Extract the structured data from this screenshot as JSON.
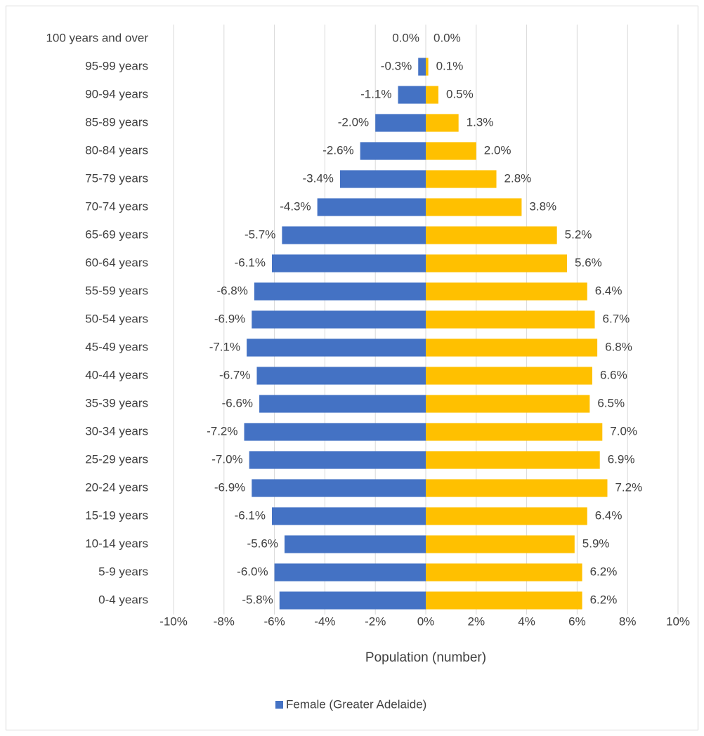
{
  "chart_data": {
    "type": "bar",
    "orientation": "horizontal",
    "x_label": "Population (number)",
    "categories": [
      "0-4 years",
      "5-9 years",
      "10-14 years",
      "15-19 years",
      "20-24 years",
      "25-29 years",
      "30-34 years",
      "35-39 years",
      "40-44 years",
      "45-49 years",
      "50-54 years",
      "55-59 years",
      "60-64 years",
      "65-69 years",
      "70-74 years",
      "75-79 years",
      "80-84 years",
      "85-89 years",
      "90-94 years",
      "95-99 years",
      "100 years and over"
    ],
    "series": [
      {
        "name": "Female (Greater Adelaide)",
        "color": "#4472c4",
        "values": [
          -5.8,
          -6.0,
          -5.6,
          -6.1,
          -6.9,
          -7.0,
          -7.2,
          -6.6,
          -6.7,
          -7.1,
          -6.9,
          -6.8,
          -6.1,
          -5.7,
          -4.3,
          -3.4,
          -2.6,
          -2.0,
          -1.1,
          -0.3,
          0.0
        ],
        "value_labels": [
          "-5.8%",
          "-6.0%",
          "-5.6%",
          "-6.1%",
          "-6.9%",
          "-7.0%",
          "-7.2%",
          "-6.6%",
          "-6.7%",
          "-7.1%",
          "-6.9%",
          "-6.8%",
          "-6.1%",
          "-5.7%",
          "-4.3%",
          "-3.4%",
          "-2.6%",
          "-2.0%",
          "-1.1%",
          "-0.3%",
          "0.0%"
        ]
      },
      {
        "color": "#ffc000",
        "values": [
          6.2,
          6.2,
          5.9,
          6.4,
          7.2,
          6.9,
          7.0,
          6.5,
          6.6,
          6.8,
          6.7,
          6.4,
          5.6,
          5.2,
          3.8,
          2.8,
          2.0,
          1.3,
          0.5,
          0.1,
          0.0
        ],
        "value_labels": [
          "6.2%",
          "6.2%",
          "5.9%",
          "6.4%",
          "7.2%",
          "6.9%",
          "7.0%",
          "6.5%",
          "6.6%",
          "6.8%",
          "6.7%",
          "6.4%",
          "5.6%",
          "5.2%",
          "3.8%",
          "2.8%",
          "2.0%",
          "1.3%",
          "0.5%",
          "0.1%",
          "0.0%"
        ]
      }
    ],
    "xlim": [
      -10,
      10
    ],
    "xticks": [
      {
        "value": -10,
        "label": "-10%"
      },
      {
        "value": -8,
        "label": "-8%"
      },
      {
        "value": -6,
        "label": "-6%"
      },
      {
        "value": -4,
        "label": "-4%"
      },
      {
        "value": -2,
        "label": "-2%"
      },
      {
        "value": 0,
        "label": "0%"
      },
      {
        "value": 2,
        "label": "2%"
      },
      {
        "value": 4,
        "label": "4%"
      },
      {
        "value": 6,
        "label": "6%"
      },
      {
        "value": 8,
        "label": "8%"
      },
      {
        "value": 10,
        "label": "10%"
      }
    ],
    "grid": true,
    "legend": "bottom"
  }
}
